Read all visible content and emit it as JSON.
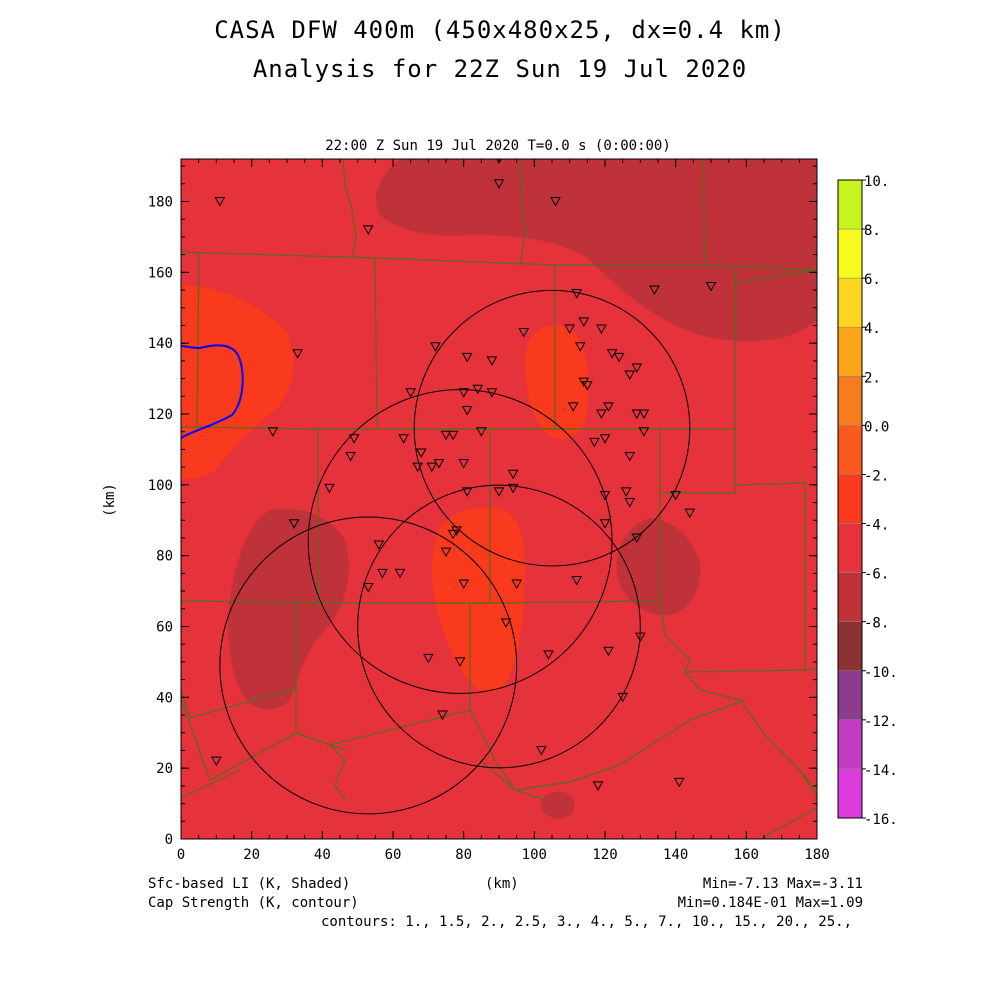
{
  "header": {
    "title_line1": "CASA DFW 400m (450x480x25, dx=0.4 km)",
    "title_line2": "Analysis for 22Z Sun 19 Jul 2020"
  },
  "plot": {
    "subtitle": "22:00 Z Sun 19 Jul 2020    T=0.0 s (0:00:00)",
    "x_axis_label": "(km)",
    "y_axis_label": "(km)",
    "x_ticks": [
      "0",
      "20",
      "40",
      "60",
      "80",
      "100",
      "120",
      "140",
      "160",
      "180"
    ],
    "y_ticks": [
      "0",
      "20",
      "40",
      "60",
      "80",
      "100",
      "120",
      "140",
      "160",
      "180"
    ],
    "xlim": [
      0,
      180
    ],
    "ylim": [
      0,
      192
    ]
  },
  "colorbar": {
    "labels": [
      "10.",
      "8.",
      "6.",
      "4.",
      "2.",
      "0.0",
      "-2.",
      "-4.",
      "-6.",
      "-8.",
      "-10.",
      "-12.",
      "-14.",
      "-16."
    ],
    "colors": [
      "#9be21b",
      "#c8f41e",
      "#f6fa1e",
      "#fcd51f",
      "#fba61a",
      "#f67c1e",
      "#fa5a1e",
      "#fa3a1c",
      "#e6323a",
      "#c0323a",
      "#8c3232",
      "#8c3c8c",
      "#c03cc0",
      "#dc3cdc"
    ]
  },
  "footer": {
    "left_line1": "Sfc-based LI (K, Shaded)",
    "left_line2": "Cap Strength (K, contour)",
    "center": "(km)",
    "right_line1": "Min=-7.13 Max=-3.11",
    "right_line2": "Min=0.184E-01 Max=1.09",
    "contours": "contours: 1., 1.5, 2., 2.5, 3., 4., 5., 7., 10., 15., 20., 25.,"
  },
  "map_colors": {
    "base": "#e6323a",
    "warm": "#fa3a1c",
    "cool": "#c0323a",
    "county_lines": "#556b1e",
    "radar_rings": "#000000",
    "cap_contour": "#0000ff"
  },
  "chart_data": {
    "type": "heatmap",
    "radar_rings": [
      {
        "cx": 53,
        "cy": 49,
        "r": 42
      },
      {
        "cx": 90,
        "cy": 60,
        "r": 40
      },
      {
        "cx": 79,
        "cy": 84,
        "r": 43
      },
      {
        "cx": 105,
        "cy": 116,
        "r": 39
      }
    ],
    "stations": [
      [
        11,
        180
      ],
      [
        90,
        192
      ],
      [
        90,
        185
      ],
      [
        106,
        180
      ],
      [
        53,
        172
      ],
      [
        134,
        155
      ],
      [
        150,
        156
      ],
      [
        112,
        154
      ],
      [
        110,
        144
      ],
      [
        114,
        146
      ],
      [
        119,
        144
      ],
      [
        97,
        143
      ],
      [
        113,
        139
      ],
      [
        33,
        137
      ],
      [
        72,
        139
      ],
      [
        81,
        136
      ],
      [
        88,
        135
      ],
      [
        122,
        137
      ],
      [
        124,
        136
      ],
      [
        127,
        131
      ],
      [
        129,
        133
      ],
      [
        114,
        129
      ],
      [
        115,
        128
      ],
      [
        80,
        126
      ],
      [
        84,
        127
      ],
      [
        88,
        126
      ],
      [
        65,
        126
      ],
      [
        111,
        122
      ],
      [
        121,
        122
      ],
      [
        119,
        120
      ],
      [
        129,
        120
      ],
      [
        131,
        120
      ],
      [
        81,
        121
      ],
      [
        26,
        115
      ],
      [
        63,
        113
      ],
      [
        75,
        114
      ],
      [
        77,
        114
      ],
      [
        85,
        115
      ],
      [
        117,
        112
      ],
      [
        120,
        113
      ],
      [
        131,
        115
      ],
      [
        49,
        113
      ],
      [
        68,
        109
      ],
      [
        67,
        105
      ],
      [
        71,
        105
      ],
      [
        73,
        106
      ],
      [
        80,
        106
      ],
      [
        48,
        108
      ],
      [
        127,
        108
      ],
      [
        94,
        103
      ],
      [
        94,
        99
      ],
      [
        42,
        99
      ],
      [
        81,
        98
      ],
      [
        90,
        98
      ],
      [
        120,
        97
      ],
      [
        126,
        98
      ],
      [
        127,
        95
      ],
      [
        140,
        97
      ],
      [
        144,
        92
      ],
      [
        32,
        89
      ],
      [
        120,
        89
      ],
      [
        78,
        87
      ],
      [
        77,
        86
      ],
      [
        129,
        85
      ],
      [
        56,
        83
      ],
      [
        75,
        81
      ],
      [
        57,
        75
      ],
      [
        62,
        75
      ],
      [
        80,
        72
      ],
      [
        95,
        72
      ],
      [
        112,
        73
      ],
      [
        53,
        71
      ],
      [
        92,
        61
      ],
      [
        130,
        57
      ],
      [
        121,
        53
      ],
      [
        104,
        52
      ],
      [
        70,
        51
      ],
      [
        79,
        50
      ],
      [
        125,
        40
      ],
      [
        74,
        35
      ],
      [
        102,
        25
      ],
      [
        10,
        22
      ],
      [
        118,
        15
      ],
      [
        141,
        16
      ]
    ]
  }
}
